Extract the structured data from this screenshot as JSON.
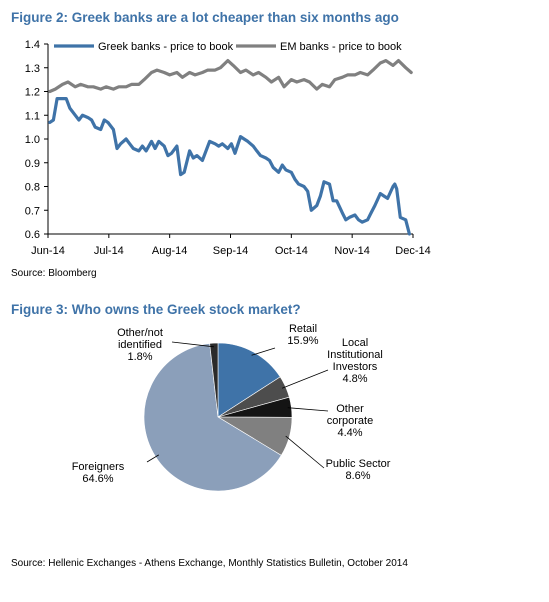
{
  "figure2": {
    "title": "Figure 2: Greek banks are a lot cheaper than six months ago",
    "source": "Source: Bloomberg"
  },
  "figure3": {
    "title": "Figure 3: Who owns the Greek stock market?",
    "source": "Source: Hellenic Exchanges - Athens Exchange, Monthly Statistics Bulletin, October 2014"
  },
  "chart_data": [
    {
      "type": "line",
      "title": "Figure 2: Greek banks are a lot cheaper than six months ago",
      "xlabel": "",
      "ylabel": "",
      "ylim": [
        0.6,
        1.4
      ],
      "yticks": [
        "0.6",
        "0.7",
        "0.8",
        "0.9",
        "1.0",
        "1.1",
        "1.2",
        "1.3",
        "1.4"
      ],
      "xticks": [
        "Jun-14",
        "Jul-14",
        "Aug-14",
        "Sep-14",
        "Oct-14",
        "Nov-14",
        "Dec-14"
      ],
      "xlim": [
        "2014-06-01",
        "2014-12-19"
      ],
      "grid": false,
      "legend": "top",
      "series": [
        {
          "name": "Greek banks - price to book",
          "color": "#3f73a8",
          "x": [
            "2014-06-02",
            "2014-06-04",
            "2014-06-06",
            "2014-06-09",
            "2014-06-11",
            "2014-06-13",
            "2014-06-16",
            "2014-06-18",
            "2014-06-20",
            "2014-06-23",
            "2014-06-25",
            "2014-06-27",
            "2014-06-30",
            "2014-07-02",
            "2014-07-04",
            "2014-07-07",
            "2014-07-09",
            "2014-07-11",
            "2014-07-14",
            "2014-07-16",
            "2014-07-18",
            "2014-07-21",
            "2014-07-23",
            "2014-07-25",
            "2014-07-28",
            "2014-07-30",
            "2014-08-01",
            "2014-08-04",
            "2014-08-06",
            "2014-08-08",
            "2014-08-11",
            "2014-08-13",
            "2014-08-15",
            "2014-08-18",
            "2014-08-20",
            "2014-08-22",
            "2014-08-25",
            "2014-08-27",
            "2014-08-29",
            "2014-09-01",
            "2014-09-03",
            "2014-09-05",
            "2014-09-08",
            "2014-09-10",
            "2014-09-12",
            "2014-09-15",
            "2014-09-17",
            "2014-09-19",
            "2014-09-22",
            "2014-09-24",
            "2014-09-26",
            "2014-09-29",
            "2014-10-01",
            "2014-10-03",
            "2014-10-06",
            "2014-10-08",
            "2014-10-10",
            "2014-10-13",
            "2014-10-15",
            "2014-10-17",
            "2014-10-20",
            "2014-10-22",
            "2014-10-24",
            "2014-10-27",
            "2014-10-29",
            "2014-10-31",
            "2014-11-03",
            "2014-11-05",
            "2014-11-07",
            "2014-11-10",
            "2014-11-12",
            "2014-11-14",
            "2014-11-17",
            "2014-11-19",
            "2014-11-21",
            "2014-11-24",
            "2014-11-26",
            "2014-11-28",
            "2014-12-01",
            "2014-12-03",
            "2014-12-05",
            "2014-12-08",
            "2014-12-09",
            "2014-12-10",
            "2014-12-12",
            "2014-12-15",
            "2014-12-17"
          ],
          "y": [
            1.07,
            1.08,
            1.17,
            1.17,
            1.17,
            1.13,
            1.1,
            1.08,
            1.1,
            1.09,
            1.08,
            1.05,
            1.04,
            1.08,
            1.07,
            1.04,
            0.96,
            0.98,
            1.0,
            0.98,
            0.96,
            0.95,
            0.97,
            0.95,
            0.99,
            0.96,
            0.99,
            0.97,
            0.93,
            0.94,
            0.97,
            0.85,
            0.86,
            0.95,
            0.92,
            0.93,
            0.91,
            0.95,
            0.99,
            0.98,
            0.97,
            0.98,
            0.96,
            0.98,
            0.94,
            1.01,
            1.0,
            0.99,
            0.97,
            0.95,
            0.93,
            0.92,
            0.91,
            0.88,
            0.86,
            0.89,
            0.87,
            0.86,
            0.83,
            0.81,
            0.8,
            0.78,
            0.7,
            0.72,
            0.76,
            0.82,
            0.81,
            0.74,
            0.74,
            0.69,
            0.66,
            0.67,
            0.68,
            0.66,
            0.65,
            0.66,
            0.69,
            0.72,
            0.77,
            0.76,
            0.75,
            0.8,
            0.81,
            0.79,
            0.67,
            0.66,
            0.6
          ]
        },
        {
          "name": "EM banks - price to book",
          "color": "#808080",
          "x": [
            "2014-06-02",
            "2014-06-05",
            "2014-06-09",
            "2014-06-12",
            "2014-06-16",
            "2014-06-19",
            "2014-06-23",
            "2014-06-26",
            "2014-06-30",
            "2014-07-03",
            "2014-07-07",
            "2014-07-10",
            "2014-07-14",
            "2014-07-17",
            "2014-07-21",
            "2014-07-24",
            "2014-07-28",
            "2014-07-31",
            "2014-08-04",
            "2014-08-07",
            "2014-08-11",
            "2014-08-14",
            "2014-08-18",
            "2014-08-21",
            "2014-08-25",
            "2014-08-28",
            "2014-09-01",
            "2014-09-04",
            "2014-09-08",
            "2014-09-11",
            "2014-09-15",
            "2014-09-18",
            "2014-09-22",
            "2014-09-25",
            "2014-09-29",
            "2014-10-02",
            "2014-10-06",
            "2014-10-09",
            "2014-10-13",
            "2014-10-16",
            "2014-10-20",
            "2014-10-23",
            "2014-10-27",
            "2014-10-30",
            "2014-11-03",
            "2014-11-06",
            "2014-11-10",
            "2014-11-13",
            "2014-11-17",
            "2014-11-20",
            "2014-11-24",
            "2014-11-27",
            "2014-12-01",
            "2014-12-04",
            "2014-12-08",
            "2014-12-11",
            "2014-12-15",
            "2014-12-18"
          ],
          "y": [
            1.2,
            1.21,
            1.23,
            1.24,
            1.22,
            1.23,
            1.22,
            1.22,
            1.21,
            1.22,
            1.21,
            1.22,
            1.22,
            1.23,
            1.23,
            1.25,
            1.28,
            1.29,
            1.28,
            1.27,
            1.28,
            1.26,
            1.28,
            1.27,
            1.28,
            1.29,
            1.29,
            1.3,
            1.33,
            1.31,
            1.28,
            1.29,
            1.27,
            1.28,
            1.26,
            1.24,
            1.26,
            1.22,
            1.25,
            1.24,
            1.25,
            1.24,
            1.21,
            1.23,
            1.22,
            1.25,
            1.26,
            1.27,
            1.27,
            1.28,
            1.27,
            1.29,
            1.32,
            1.33,
            1.31,
            1.33,
            1.3,
            1.28
          ]
        }
      ]
    },
    {
      "type": "pie",
      "title": "Figure 3: Who owns the Greek stock market?",
      "slices": [
        {
          "label_lines": [
            "Retail"
          ],
          "value": 15.9,
          "value_label": "15.9%",
          "color": "#3f73a8"
        },
        {
          "label_lines": [
            "Local",
            "Institutional",
            "Investors"
          ],
          "value": 4.8,
          "value_label": "4.8%",
          "color": "#4d4d4d"
        },
        {
          "label_lines": [
            "Other",
            "corporate"
          ],
          "value": 4.4,
          "value_label": "4.4%",
          "color": "#141414"
        },
        {
          "label_lines": [
            "Public Sector"
          ],
          "value": 8.6,
          "value_label": "8.6%",
          "color": "#808080"
        },
        {
          "label_lines": [
            "Foreigners"
          ],
          "value": 64.6,
          "value_label": "64.6%",
          "color": "#8b9fba"
        },
        {
          "label_lines": [
            "Other/not",
            "identified"
          ],
          "value": 1.8,
          "value_label": "1.8%",
          "color": "#2b2b2b"
        }
      ]
    }
  ]
}
